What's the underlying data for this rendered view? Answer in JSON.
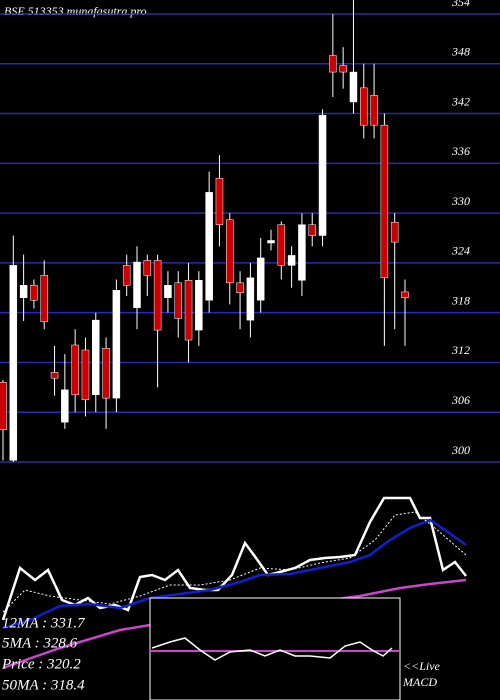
{
  "chart_data": {
    "type": "candlestick",
    "title": "BSE 513353 munafasutra.pro",
    "up_color": "#ffffff",
    "down_color": "#cc0000",
    "grid_color": "#2a2ab0",
    "ylim": [
      300,
      354
    ],
    "yticks": [
      300,
      306,
      312,
      318,
      324,
      330,
      336,
      342,
      348,
      354
    ],
    "grid": true,
    "open": [
      309.6,
      300.2,
      319.8,
      321.3,
      322.5,
      310.8,
      304.8,
      314.1,
      313.5,
      308.1,
      313.7,
      307.7,
      323.7,
      318.6,
      324.3,
      324.3,
      319.8,
      321.6,
      321.9,
      315.9,
      319.5,
      334.2,
      329.2,
      321.6,
      317.1,
      319.5,
      326.4,
      328.6,
      323.7,
      321.9,
      328.6,
      327.3,
      349.0,
      347.8,
      343.4,
      345.1,
      344.2,
      340.6,
      328.9,
      320.5
    ],
    "high": [
      309.9,
      327.3,
      325.0,
      322.0,
      324.3,
      314.0,
      313.0,
      316.0,
      315.0,
      318.0,
      315.0,
      322.0,
      325.0,
      326.0,
      325.0,
      325.0,
      323.0,
      323.0,
      324.0,
      323.0,
      335.0,
      337.0,
      330.0,
      323.0,
      324.0,
      327.0,
      328.0,
      329.0,
      326.0,
      330.0,
      330.0,
      342.5,
      354.0,
      350.0,
      356.0,
      348.0,
      348.0,
      342.0,
      330.0,
      322.0
    ],
    "low": [
      300.2,
      300.0,
      317.0,
      318.5,
      316.0,
      308.0,
      304.0,
      306.0,
      305.5,
      306.0,
      304.0,
      306.0,
      320.0,
      316.0,
      320.0,
      309.0,
      318.0,
      315.0,
      312.0,
      314.0,
      318.0,
      326.0,
      319.0,
      316.0,
      315.0,
      318.0,
      325.5,
      322.0,
      321.0,
      320.0,
      326.0,
      326.0,
      344.0,
      345.0,
      342.0,
      339.0,
      339.0,
      314.0,
      316.0,
      314.0
    ],
    "close": [
      303.9,
      323.7,
      321.3,
      319.5,
      316.9,
      310.1,
      308.7,
      308.1,
      307.5,
      317.1,
      307.7,
      320.7,
      321.3,
      324.1,
      322.5,
      315.9,
      321.3,
      317.3,
      314.7,
      321.9,
      332.5,
      328.6,
      321.6,
      320.4,
      322.2,
      324.6,
      326.7,
      323.7,
      324.9,
      328.6,
      327.3,
      341.8,
      347.0,
      347.0,
      347.0,
      340.6,
      340.6,
      322.2,
      326.5,
      319.8
    ],
    "notes": [
      "12MA : 331.7",
      "5MA : 328.6",
      "Price : 320.2",
      "50MA : 318.4"
    ],
    "live_label": "<<Live",
    "macd_label": "MACD"
  }
}
